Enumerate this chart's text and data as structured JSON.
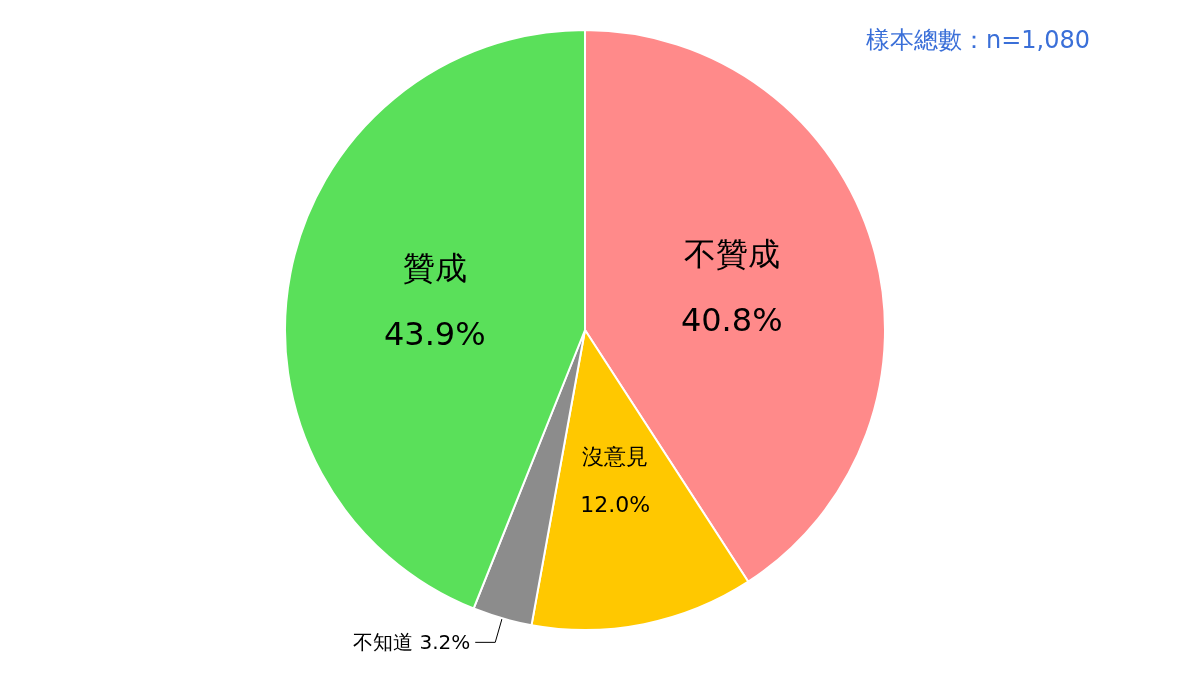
{
  "chart_data": {
    "type": "pie",
    "categories": [
      "不贊成",
      "沒意見",
      "不知道",
      "贊成"
    ],
    "values": [
      40.8,
      12.0,
      3.2,
      43.9
    ],
    "colors": [
      "#ff8a8a",
      "#ffc800",
      "#8c8c8c",
      "#5ae05a"
    ],
    "value_labels": [
      "40.8%",
      "12.0%",
      "3.2%",
      "43.9%"
    ],
    "annotations": [
      "樣本總數：n=1,080"
    ]
  }
}
